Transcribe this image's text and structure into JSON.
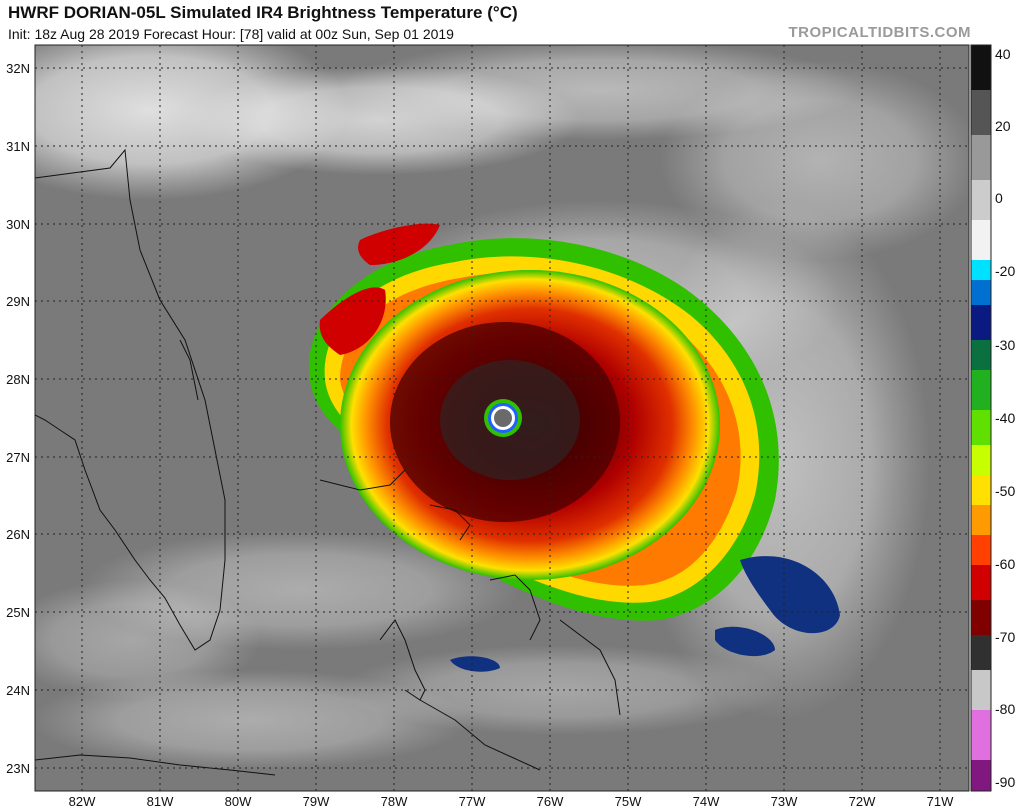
{
  "header": {
    "title": "HWRF DORIAN-05L Simulated IR4 Brightness Temperature (°C)",
    "subtitle": "Init: 18z Aug 28 2019   Forecast Hour: [78]   valid at 00z Sun, Sep 01 2019",
    "credit": "TROPICALTIDBITS.COM"
  },
  "map": {
    "lat_labels": [
      "32N",
      "31N",
      "30N",
      "29N",
      "28N",
      "27N",
      "26N",
      "25N",
      "24N",
      "23N"
    ],
    "lon_labels": [
      "82W",
      "81W",
      "80W",
      "79W",
      "78W",
      "77W",
      "76W",
      "75W",
      "74W",
      "73W",
      "72W",
      "71W"
    ],
    "colors": {
      "land_outline": "#111111",
      "grid": "#222222"
    }
  },
  "colorbar": {
    "tick_labels": [
      "40",
      "20",
      "0",
      "-20",
      "-30",
      "-40",
      "-50",
      "-60",
      "-70",
      "-80",
      "-90"
    ],
    "range": [
      -90,
      45
    ]
  }
}
